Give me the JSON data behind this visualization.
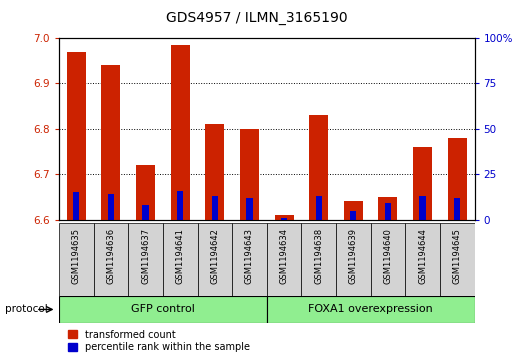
{
  "title": "GDS4957 / ILMN_3165190",
  "samples": [
    "GSM1194635",
    "GSM1194636",
    "GSM1194637",
    "GSM1194641",
    "GSM1194642",
    "GSM1194643",
    "GSM1194634",
    "GSM1194638",
    "GSM1194639",
    "GSM1194640",
    "GSM1194644",
    "GSM1194645"
  ],
  "transformed_counts": [
    6.97,
    6.94,
    6.72,
    6.985,
    6.81,
    6.8,
    6.61,
    6.83,
    6.64,
    6.65,
    6.76,
    6.78
  ],
  "percentile_ranks": [
    15,
    14,
    8,
    16,
    13,
    12,
    1,
    13,
    5,
    9,
    13,
    12
  ],
  "baseline": 6.6,
  "ylim_left": [
    6.6,
    7.0
  ],
  "ylim_right": [
    0,
    100
  ],
  "yticks_left": [
    6.6,
    6.7,
    6.8,
    6.9,
    7.0
  ],
  "yticks_right": [
    0,
    25,
    50,
    75,
    100
  ],
  "groups": [
    {
      "label": "GFP control",
      "start": 0,
      "end": 6,
      "color": "#90EE90"
    },
    {
      "label": "FOXA1 overexpression",
      "start": 6,
      "end": 12,
      "color": "#90EE90"
    }
  ],
  "group_label_prefix": "protocol",
  "bar_color_red": "#CC2200",
  "bar_color_blue": "#0000CC",
  "bar_width": 0.55,
  "blue_bar_width": 0.18,
  "background_color": "#FFFFFF",
  "plot_bg_color": "#FFFFFF",
  "tick_label_color_left": "#CC2200",
  "tick_label_color_right": "#0000CC",
  "grid_color": "#000000",
  "legend_items": [
    "transformed count",
    "percentile rank within the sample"
  ],
  "sample_box_color": "#D3D3D3",
  "title_fontsize": 10,
  "tick_fontsize": 7.5,
  "sample_fontsize": 6,
  "group_fontsize": 8
}
